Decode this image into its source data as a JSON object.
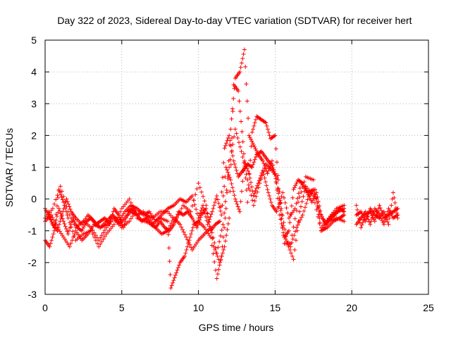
{
  "chart_data": {
    "type": "scatter",
    "title": "Day 322 of 2023, Sidereal Day-to-day VTEC variation (SDTVAR) for receiver hert",
    "xlabel": "GPS time / hours",
    "ylabel": "SDTVAR / TECUs",
    "xlim": [
      0,
      25
    ],
    "ylim": [
      -3,
      5
    ],
    "xticks": [
      0,
      5,
      10,
      15,
      20,
      25
    ],
    "yticks": [
      -3,
      -2,
      -1,
      0,
      1,
      2,
      3,
      4,
      5
    ],
    "grid": true,
    "marker": "+",
    "color": "#ff0000",
    "series": [
      {
        "name": "SDTVAR",
        "segments": [
          {
            "x": [
              0.0,
              0.3,
              0.6,
              0.9,
              1.2,
              1.5,
              1.8,
              2.1,
              2.4,
              2.7,
              3.0,
              3.3,
              3.6,
              3.9,
              4.2,
              4.5,
              4.8,
              5.1,
              5.4,
              5.7,
              6.0,
              6.3,
              6.6,
              6.9,
              7.2,
              7.5,
              7.8,
              8.1,
              8.4,
              8.7,
              9.0,
              9.3,
              9.6,
              9.9,
              10.2,
              10.5,
              10.8,
              11.1,
              11.4,
              11.7,
              12.0,
              12.3,
              12.6,
              12.9,
              13.2,
              13.5,
              13.8,
              14.1,
              14.4,
              14.7,
              15.0,
              15.3,
              15.6,
              15.9,
              16.2,
              16.5,
              16.8,
              17.1,
              17.4,
              17.7,
              18.0,
              18.3,
              18.6,
              18.9,
              19.2,
              19.5
            ],
            "y": [
              -0.3,
              -0.6,
              -0.9,
              -0.3,
              -0.7,
              -1.1,
              -0.6,
              -0.9,
              -1.0,
              -0.7,
              -0.6,
              -0.8,
              -0.7,
              -0.6,
              -0.8,
              -0.3,
              -0.5,
              -0.9,
              -0.4,
              -0.3,
              -0.5,
              -0.7,
              -0.6,
              -0.8,
              -0.9,
              -0.7,
              -0.9,
              -1.0,
              -0.8,
              -0.4,
              -0.5,
              -0.4,
              -0.6,
              -0.9,
              -0.5,
              -0.3,
              -1.0,
              -0.8,
              -0.7,
              1.6,
              2.0,
              1.2,
              0.7,
              0.9,
              1.1,
              1.0,
              1.4,
              1.5,
              1.3,
              1.1,
              0.8,
              -0.5,
              -1.2,
              -1.0,
              0.3,
              0.6,
              0.5,
              0.2,
              -0.1,
              0.2,
              -0.5,
              -0.8,
              -0.6,
              -0.5,
              -0.3,
              -0.4
            ]
          },
          {
            "x": [
              0.0,
              0.4,
              0.8,
              1.2,
              1.6,
              2.0,
              2.4,
              2.8,
              3.2,
              3.6,
              4.0,
              4.4,
              4.8,
              5.2,
              5.6,
              6.0,
              6.4,
              6.8,
              7.2,
              7.6,
              8.0,
              8.4,
              8.8,
              9.2,
              9.6,
              10.0,
              10.4,
              10.8,
              11.2,
              11.6,
              12.0,
              12.4,
              12.8,
              13.2,
              13.6,
              14.0,
              14.4,
              14.8,
              15.2,
              15.6,
              16.0,
              16.4,
              16.8,
              17.2,
              17.6,
              18.0,
              18.4,
              18.8,
              19.2,
              19.5
            ],
            "y": [
              -0.7,
              -0.5,
              -0.9,
              -1.2,
              -1.5,
              -1.0,
              -1.3,
              -1.1,
              -0.8,
              -0.9,
              -0.7,
              -0.5,
              -0.8,
              -0.6,
              -0.4,
              -0.5,
              -0.4,
              -0.6,
              -0.9,
              -1.1,
              -1.0,
              -0.6,
              -0.8,
              -1.2,
              -1.6,
              -1.3,
              -1.1,
              -0.9,
              -1.7,
              -0.8,
              1.0,
              2.2,
              1.5,
              0.6,
              -0.2,
              0.5,
              1.1,
              0.9,
              0.6,
              -1.2,
              -1.5,
              -0.9,
              -0.5,
              0.1,
              0.3,
              -1.0,
              -0.9,
              -0.7,
              -0.6,
              -0.5
            ]
          },
          {
            "x": [
              0.0,
              0.5,
              1.0,
              1.5,
              2.0,
              2.5,
              3.0,
              3.5,
              4.0,
              4.5,
              5.0,
              5.5,
              6.0,
              6.5,
              7.0,
              7.5,
              8.0,
              8.5,
              9.0,
              9.5,
              10.0,
              10.5,
              11.0,
              11.4,
              11.7,
              12.0,
              12.3,
              12.6,
              12.9,
              13.2,
              13.5,
              13.8,
              14.1,
              14.4,
              14.7,
              15.0,
              15.3,
              15.6,
              16.0,
              16.5,
              17.0,
              17.5,
              18.0,
              18.5,
              19.0,
              19.5
            ],
            "y": [
              -0.6,
              -0.3,
              0.4,
              -0.4,
              -0.9,
              -0.7,
              -0.9,
              -1.3,
              -0.9,
              -0.6,
              -0.9,
              -0.7,
              -0.3,
              -0.5,
              -0.6,
              -0.4,
              -0.4,
              -0.7,
              -0.2,
              -0.4,
              0.5,
              -0.2,
              -1.5,
              -2.0,
              -1.5,
              -0.6,
              3.6,
              3.4,
              1.8,
              -0.1,
              2.1,
              2.6,
              2.5,
              2.4,
              1.9,
              2.0,
              -0.1,
              -1.4,
              -1.4,
              -0.1,
              0.7,
              0.6,
              -0.9,
              -0.6,
              -0.3,
              -0.2
            ]
          },
          {
            "x": [
              0.0,
              0.3,
              0.6,
              0.9,
              1.2,
              1.5,
              2.0,
              2.5,
              3.0,
              3.5,
              4.0,
              4.5,
              5.0,
              5.5,
              6.0,
              6.5,
              7.0,
              7.5,
              8.0,
              8.2,
              8.5,
              8.8,
              9.1,
              9.4,
              9.7,
              10.0,
              10.4,
              10.8,
              11.2,
              11.5,
              11.8,
              12.1,
              12.4,
              12.7,
              13.0,
              13.3,
              13.6,
              13.9,
              14.2,
              14.5,
              14.8,
              15.1,
              15.4,
              15.8,
              16.2,
              16.6,
              17.0,
              17.5,
              18.0,
              18.5,
              19.0,
              19.5
            ],
            "y": [
              -1.3,
              -1.5,
              -1.0,
              0.3,
              -0.1,
              -0.6,
              -1.3,
              -1.1,
              -1.0,
              -1.5,
              -1.1,
              -0.8,
              -0.3,
              0.0,
              -0.6,
              -0.7,
              -0.8,
              -0.6,
              -0.7,
              -2.8,
              -2.4,
              -2.0,
              -1.8,
              -1.3,
              -0.8,
              -0.7,
              -0.9,
              -1.2,
              -2.5,
              -1.8,
              -0.3,
              2.2,
              3.8,
              4.0,
              4.7,
              2.0,
              1.7,
              1.4,
              1.2,
              0.8,
              1.2,
              0.5,
              -0.3,
              -1.4,
              -1.9,
              -0.4,
              0.4,
              0.1,
              -1.0,
              -0.7,
              -0.6,
              -0.7
            ]
          },
          {
            "x": [
              0.2,
              0.5,
              0.8,
              1.1,
              1.4,
              1.7,
              2.0,
              2.4,
              2.8,
              3.2,
              3.6,
              4.0,
              4.4,
              4.8,
              5.2,
              5.6,
              6.0,
              6.4,
              6.8,
              7.2,
              7.6,
              8.0,
              8.4,
              8.8,
              9.2,
              9.6,
              10.0,
              10.3,
              10.6,
              10.9,
              11.2,
              11.5,
              11.8,
              12.1,
              12.4,
              12.7,
              13.0,
              13.3,
              13.6,
              13.9,
              14.2,
              14.5,
              14.8,
              15.1,
              15.5,
              15.9,
              16.3,
              16.7,
              17.1,
              17.5,
              17.9,
              18.3,
              18.7,
              19.1,
              19.5
            ],
            "y": [
              -0.4,
              -0.8,
              -1.0,
              -0.5,
              0.0,
              -0.4,
              -0.6,
              -0.8,
              -0.5,
              -0.7,
              -0.9,
              -0.8,
              -0.5,
              -0.7,
              -0.4,
              -0.2,
              -0.3,
              -0.5,
              -0.4,
              -0.7,
              -0.5,
              -0.3,
              -0.2,
              0.0,
              -0.1,
              0.1,
              -0.6,
              -0.2,
              -0.8,
              -0.4,
              0.1,
              -0.5,
              1.0,
              0.6,
              0.0,
              -0.4,
              1.2,
              0.8,
              0.1,
              0.5,
              0.9,
              0.3,
              -0.2,
              -0.4,
              0.2,
              -0.6,
              -0.3,
              0.5,
              0.2,
              0.3,
              -0.4,
              -0.8,
              -0.5,
              -0.4,
              -0.3
            ]
          },
          {
            "x": [
              20.3,
              20.6,
              20.9,
              21.2,
              21.5,
              21.8,
              22.1,
              22.4,
              22.7,
              23.0
            ],
            "y": [
              -0.2,
              -0.9,
              -0.5,
              -0.4,
              -0.7,
              -0.2,
              -0.6,
              -0.5,
              -0.4,
              -0.3
            ]
          },
          {
            "x": [
              20.3,
              20.6,
              20.9,
              21.2,
              21.5,
              21.8,
              22.1,
              22.4,
              22.7,
              23.0
            ],
            "y": [
              -0.5,
              -0.4,
              -0.7,
              -0.3,
              -0.5,
              -0.6,
              -0.4,
              -0.8,
              0.2,
              -0.6
            ]
          },
          {
            "x": [
              20.3,
              20.6,
              20.9,
              21.2,
              21.5,
              21.8,
              22.1,
              22.4,
              22.7,
              23.0
            ],
            "y": [
              -0.8,
              -0.6,
              -0.4,
              -0.8,
              -0.3,
              -0.5,
              -0.8,
              -0.3,
              -0.6,
              -0.5
            ]
          }
        ]
      }
    ]
  }
}
